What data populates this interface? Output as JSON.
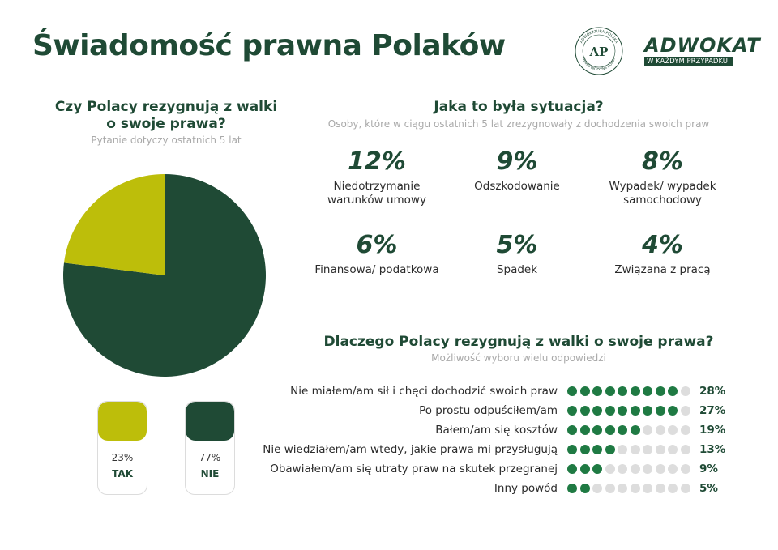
{
  "header": {
    "title": "Świadomość prawna Polaków"
  },
  "logos": {
    "chamber_ring_top": "ADWOKATURA POLSKA",
    "chamber_ring_bottom": "PRAWO OJCZYZNA HONOR",
    "chamber_monogram": "AP",
    "campaign_big": "ADWOKAT",
    "campaign_small": "W KAŻDYM PRZYPADKU"
  },
  "colors": {
    "dark_green": "#1f4a35",
    "olive": "#bdbe0a",
    "dot_green": "#1f7a43",
    "dot_grey": "#dddddd"
  },
  "chart_data": [
    {
      "type": "pie",
      "title": "Czy Polacy rezygnują z walki o swoje prawa?",
      "subtitle": "Pytanie dotyczy ostatnich 5 lat",
      "slices": [
        {
          "label": "TAK",
          "value": 23,
          "display": "23%",
          "color": "#bdbe0a"
        },
        {
          "label": "NIE",
          "value": 77,
          "display": "77%",
          "color": "#1f4a35"
        }
      ]
    },
    {
      "type": "table",
      "title": "Jaka to była sytuacja?",
      "subtitle": "Osoby, które w ciągu ostatnich 5 lat zrezygnowały z dochodzenia swoich praw",
      "items": [
        {
          "value": "12%",
          "label": "Niedotrzymanie warunków umowy"
        },
        {
          "value": "9%",
          "label": "Odszkodowanie"
        },
        {
          "value": "8%",
          "label": "Wypadek/ wypadek samochodowy"
        },
        {
          "value": "6%",
          "label": "Finansowa/ podatkowa"
        },
        {
          "value": "5%",
          "label": "Spadek"
        },
        {
          "value": "4%",
          "label": "Związana z pracą"
        }
      ]
    },
    {
      "type": "bar",
      "title": "Dlaczego Polacy rezygnują z walki o swoje prawa?",
      "subtitle": "Możliwość wyboru wielu odpowiedzi",
      "dot_scale_max": 10,
      "rows": [
        {
          "label": "Nie miałem/am sił i chęci dochodzić swoich praw",
          "value": 28,
          "display": "28%",
          "filled_dots": 9
        },
        {
          "label": "Po prostu odpuściłem/am",
          "value": 27,
          "display": "27%",
          "filled_dots": 9
        },
        {
          "label": "Bałem/am się kosztów",
          "value": 19,
          "display": "19%",
          "filled_dots": 6
        },
        {
          "label": "Nie wiedziałem/am wtedy, jakie prawa mi przysługują",
          "value": 13,
          "display": "13%",
          "filled_dots": 4
        },
        {
          "label": "Obawiałem/am się utraty praw na skutek przegranej",
          "value": 9,
          "display": "9%",
          "filled_dots": 3
        },
        {
          "label": "Inny powód",
          "value": 5,
          "display": "5%",
          "filled_dots": 2
        }
      ]
    }
  ]
}
